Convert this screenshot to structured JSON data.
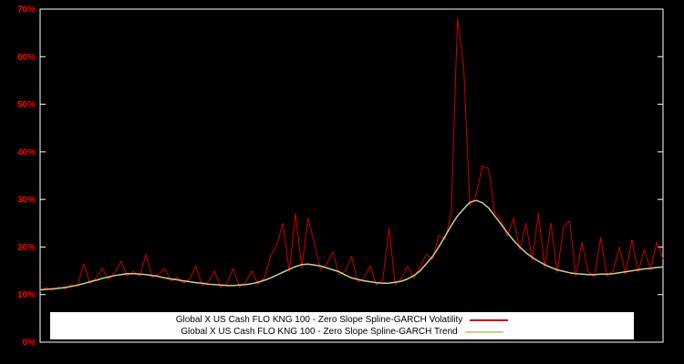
{
  "window": {
    "background": "#000000"
  },
  "chart_data": {
    "type": "line",
    "title": "",
    "xlabel": "",
    "ylabel": "",
    "grid": false,
    "legend_position": "bottom-center",
    "background": "#000000",
    "axis_color": "#ffffff",
    "tick_label_color": "#ff0000",
    "xlim": [
      0,
      100
    ],
    "ylim": [
      0,
      70
    ],
    "yticks": [
      {
        "value": 0,
        "label": "0%"
      },
      {
        "value": 10,
        "label": "10%"
      },
      {
        "value": 20,
        "label": "20%"
      },
      {
        "value": 30,
        "label": "30%"
      },
      {
        "value": 40,
        "label": "40%"
      },
      {
        "value": 50,
        "label": "50%"
      },
      {
        "value": 60,
        "label": "60%"
      },
      {
        "value": 70,
        "label": "70%"
      }
    ],
    "x": [
      0,
      1,
      2,
      3,
      4,
      5,
      6,
      7,
      8,
      9,
      10,
      11,
      12,
      13,
      14,
      15,
      16,
      17,
      18,
      19,
      20,
      21,
      22,
      23,
      24,
      25,
      26,
      27,
      28,
      29,
      30,
      31,
      32,
      33,
      34,
      35,
      36,
      37,
      38,
      39,
      40,
      41,
      42,
      43,
      44,
      45,
      46,
      47,
      48,
      49,
      50,
      51,
      52,
      53,
      54,
      55,
      56,
      57,
      58,
      59,
      60,
      61,
      62,
      63,
      64,
      65,
      66,
      67,
      68,
      69,
      70,
      71,
      72,
      73,
      74,
      75,
      76,
      77,
      78,
      79,
      80,
      81,
      82,
      83,
      84,
      85,
      86,
      87,
      88,
      89,
      90,
      91,
      92,
      93,
      94,
      95,
      96,
      97,
      98,
      99,
      100
    ],
    "series": [
      {
        "name": "Global X US Cash FLO KNG 100 - Zero Slope Spline-GARCH Volatility",
        "color": "#cc0000",
        "stroke_width": 1,
        "values": [
          10.8,
          11.5,
          10.9,
          11.6,
          11.2,
          12.1,
          11.7,
          16.5,
          12.3,
          13.5,
          15.5,
          13.2,
          14.6,
          17.0,
          13.9,
          14.9,
          13.8,
          18.5,
          13.6,
          14.3,
          15.5,
          12.8,
          13.6,
          12.4,
          13.2,
          16.0,
          11.9,
          12.7,
          15.0,
          11.5,
          12.4,
          15.5,
          11.6,
          12.5,
          15.0,
          12.1,
          13.5,
          18.0,
          20.5,
          25.0,
          14.8,
          27.0,
          15.6,
          26.0,
          21.0,
          15.3,
          16.4,
          19.0,
          14.2,
          14.9,
          18.0,
          12.6,
          13.5,
          16.0,
          12.0,
          13.0,
          24.0,
          12.1,
          13.4,
          16.0,
          13.5,
          15.8,
          18.5,
          17.4,
          22.5,
          21.6,
          27.0,
          68.0,
          58.0,
          28.6,
          30.9,
          37.0,
          36.5,
          27.2,
          25.6,
          22.3,
          26.0,
          19.4,
          25.0,
          17.2,
          27.0,
          15.8,
          25.0,
          14.6,
          24.0,
          25.5,
          13.9,
          21.0,
          14.8,
          13.7,
          22.0,
          13.9,
          15.0,
          20.0,
          14.3,
          21.5,
          14.7,
          19.5,
          15.2,
          21.0,
          17.5
        ]
      },
      {
        "name": "Global X US Cash FLO KNG 100 - Zero Slope Spline-GARCH Trend",
        "color": "#cfcf84",
        "stroke_width": 1.5,
        "values": [
          11.0,
          11.1,
          11.2,
          11.3,
          11.5,
          11.7,
          12.0,
          12.3,
          12.7,
          13.0,
          13.4,
          13.7,
          14.0,
          14.2,
          14.4,
          14.4,
          14.3,
          14.2,
          14.0,
          13.8,
          13.5,
          13.3,
          13.1,
          12.9,
          12.7,
          12.5,
          12.4,
          12.2,
          12.1,
          12.0,
          11.9,
          11.9,
          12.0,
          12.1,
          12.3,
          12.6,
          13.0,
          13.5,
          14.1,
          14.7,
          15.3,
          15.9,
          16.3,
          16.4,
          16.2,
          16.0,
          15.6,
          15.2,
          14.8,
          14.1,
          13.5,
          13.2,
          12.9,
          12.7,
          12.5,
          12.4,
          12.4,
          12.6,
          12.8,
          13.3,
          14.0,
          15.0,
          16.5,
          18.0,
          20.0,
          22.2,
          24.5,
          26.5,
          28.0,
          29.4,
          29.8,
          29.3,
          28.2,
          26.5,
          24.8,
          23.0,
          21.4,
          20.0,
          18.8,
          17.8,
          17.0,
          16.3,
          15.7,
          15.2,
          14.9,
          14.6,
          14.4,
          14.3,
          14.2,
          14.2,
          14.3,
          14.3,
          14.4,
          14.6,
          14.8,
          15.0,
          15.2,
          15.4,
          15.5,
          15.7,
          15.8
        ]
      }
    ]
  }
}
